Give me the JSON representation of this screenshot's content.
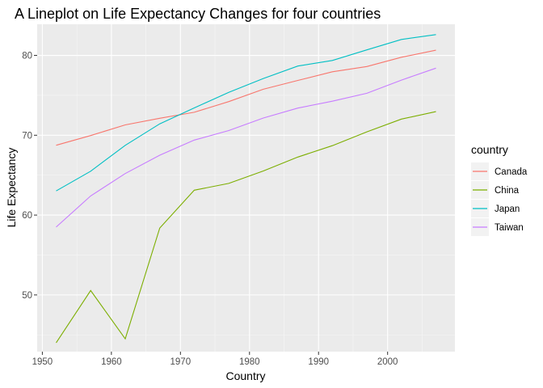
{
  "chart_data": {
    "type": "line",
    "title": "A Lineplot on Life Expectancy Changes for four countries",
    "xlabel": "Country",
    "ylabel": "Life Expectancy",
    "xlim": [
      1949.25,
      2009.75
    ],
    "ylim": [
      42.9,
      83.9
    ],
    "xticks": [
      1950,
      1960,
      1970,
      1980,
      1990,
      2000
    ],
    "yticks": [
      50,
      60,
      70,
      80
    ],
    "grid": true,
    "legend": {
      "title": "country",
      "position": "right"
    },
    "x": [
      1952,
      1957,
      1962,
      1967,
      1972,
      1977,
      1982,
      1987,
      1992,
      1997,
      2002,
      2007
    ],
    "series": [
      {
        "name": "Canada",
        "color": "#F8766D",
        "values": [
          68.75,
          69.96,
          71.3,
          72.13,
          72.88,
          74.21,
          75.76,
          76.86,
          77.95,
          78.61,
          79.77,
          80.65
        ]
      },
      {
        "name": "China",
        "color": "#7CAE00",
        "values": [
          44.0,
          50.55,
          44.5,
          58.38,
          63.12,
          63.97,
          65.53,
          67.27,
          68.69,
          70.43,
          72.03,
          72.96
        ]
      },
      {
        "name": "Japan",
        "color": "#00BFC4",
        "values": [
          63.03,
          65.5,
          68.73,
          71.43,
          73.42,
          75.38,
          77.11,
          78.67,
          79.36,
          80.69,
          82.0,
          82.6
        ]
      },
      {
        "name": "Taiwan",
        "color": "#C77CFF",
        "values": [
          58.5,
          62.4,
          65.2,
          67.5,
          69.39,
          70.59,
          72.16,
          73.4,
          74.26,
          75.25,
          76.9,
          78.4
        ]
      }
    ]
  }
}
